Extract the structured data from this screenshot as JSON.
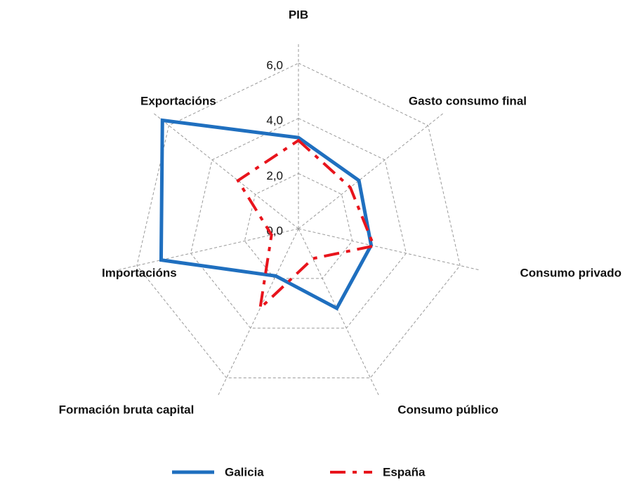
{
  "chart_data": {
    "type": "radar",
    "categories": [
      "PIB",
      "Gasto consumo final",
      "Consumo privado",
      "Consumo público",
      "Formación bruta capital",
      "Importacións",
      "Exportacións"
    ],
    "series": [
      {
        "name": "Galicia",
        "color": "#1f6fbf",
        "values": [
          3.3,
          2.8,
          2.7,
          3.2,
          1.9,
          5.1,
          6.3
        ]
      },
      {
        "name": "España",
        "color": "#e8141c",
        "values": [
          3.2,
          2.4,
          2.8,
          1.2,
          3.2,
          1.0,
          2.8
        ]
      }
    ],
    "ylim": [
      0,
      6
    ],
    "yticks": [
      {
        "value": 0,
        "label": "0,0"
      },
      {
        "value": 2,
        "label": "2,0"
      },
      {
        "value": 4,
        "label": "4,0"
      },
      {
        "value": 6,
        "label": "6,0"
      }
    ],
    "grid": true
  }
}
